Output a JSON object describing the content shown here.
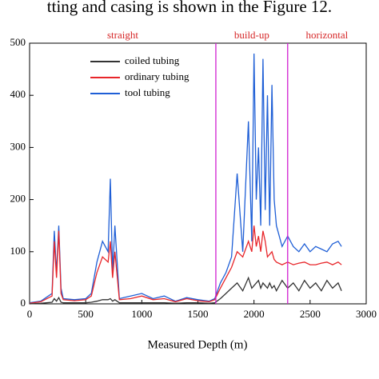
{
  "caption": "tting and casing is shown in the Figure 12.",
  "chart_data": {
    "type": "line",
    "x_label": "Measured Depth (m)",
    "xlim": [
      0,
      3000
    ],
    "xticks": [
      0,
      500,
      1000,
      1500,
      2000,
      2500,
      3000
    ],
    "ylim": [
      0,
      500
    ],
    "yticks": [
      0,
      100,
      200,
      300,
      400,
      500
    ],
    "section_boundaries": [
      1660,
      2300
    ],
    "boundary_color": "#d020d0",
    "sections": [
      "straight",
      "build-up",
      "horizontal"
    ],
    "section_color": "#d62728",
    "x": [
      0,
      100,
      200,
      220,
      240,
      260,
      280,
      300,
      400,
      500,
      550,
      600,
      650,
      700,
      720,
      740,
      760,
      800,
      900,
      1000,
      1100,
      1200,
      1300,
      1400,
      1500,
      1600,
      1650,
      1700,
      1750,
      1800,
      1850,
      1900,
      1950,
      1980,
      2000,
      2020,
      2040,
      2060,
      2080,
      2100,
      2120,
      2140,
      2160,
      2180,
      2200,
      2250,
      2300,
      2350,
      2400,
      2450,
      2500,
      2550,
      2600,
      2650,
      2700,
      2750,
      2780
    ],
    "series": [
      {
        "name": "coiled tubing",
        "color": "#333333",
        "values": [
          0,
          1,
          3,
          10,
          5,
          12,
          3,
          2,
          2,
          2,
          3,
          5,
          8,
          8,
          10,
          5,
          8,
          2,
          2,
          2,
          2,
          2,
          1,
          2,
          2,
          1,
          2,
          10,
          20,
          30,
          40,
          25,
          50,
          30,
          35,
          40,
          45,
          30,
          40,
          35,
          30,
          40,
          30,
          35,
          25,
          45,
          30,
          40,
          25,
          45,
          30,
          40,
          25,
          45,
          30,
          40,
          25
        ]
      },
      {
        "name": "ordinary tubing",
        "color": "#e8262a",
        "values": [
          1,
          4,
          15,
          120,
          50,
          140,
          20,
          8,
          6,
          8,
          15,
          60,
          90,
          80,
          120,
          50,
          100,
          8,
          10,
          15,
          8,
          10,
          4,
          10,
          6,
          4,
          8,
          30,
          50,
          70,
          100,
          90,
          120,
          100,
          150,
          110,
          130,
          100,
          140,
          120,
          90,
          95,
          100,
          85,
          80,
          75,
          80,
          75,
          78,
          80,
          75,
          75,
          78,
          80,
          75,
          80,
          75
        ]
      },
      {
        "name": "tool tubing",
        "color": "#1f5fd6",
        "values": [
          2,
          5,
          20,
          140,
          60,
          150,
          30,
          10,
          8,
          10,
          20,
          80,
          120,
          100,
          240,
          60,
          150,
          10,
          15,
          20,
          10,
          15,
          5,
          12,
          8,
          5,
          10,
          40,
          60,
          90,
          250,
          100,
          350,
          120,
          480,
          200,
          300,
          150,
          470,
          180,
          400,
          150,
          420,
          200,
          150,
          110,
          130,
          110,
          100,
          115,
          100,
          110,
          105,
          100,
          115,
          120,
          110
        ]
      }
    ]
  }
}
